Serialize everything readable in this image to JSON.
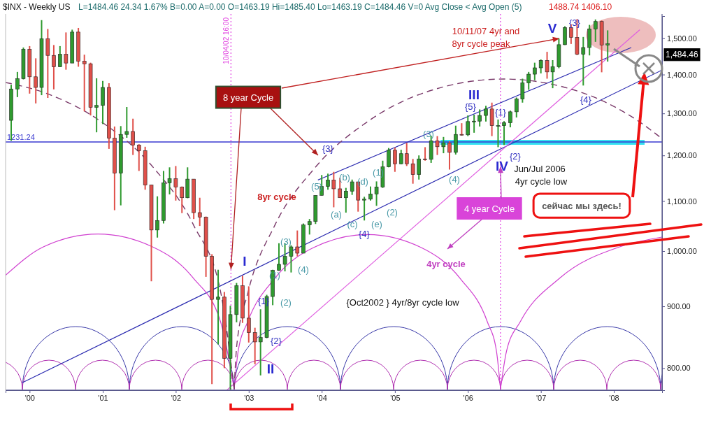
{
  "chart_data": {
    "type": "candlestick",
    "title": "$INX - Weekly US",
    "subtitle": "L=1484.46  24.34  1.67%  B=0.00  A=0.00  O=1463.19  Hi=1485.40  Lo=1463.19  C=1484.46  V=0  Avg Close < Avg Open (5)",
    "log": "y",
    "grid": false,
    "xlim": [
      "1999-09-03",
      "2008-08-29"
    ],
    "xticks": [
      {
        "value": "2000",
        "label": "'00"
      },
      {
        "value": "2001",
        "label": "'01"
      },
      {
        "value": "2002",
        "label": "'02"
      },
      {
        "value": "2003",
        "label": "'03"
      },
      {
        "value": "2004",
        "label": "'04"
      },
      {
        "value": "2005",
        "label": "'05"
      },
      {
        "value": "2006",
        "label": "'06"
      },
      {
        "value": "2007",
        "label": "'07"
      },
      {
        "value": "2008",
        "label": "'08"
      }
    ],
    "ylim": [
      767,
      1565
    ],
    "yticks": [
      {
        "value": 800,
        "label": "800.00"
      },
      {
        "value": 900,
        "label": "900.00"
      },
      {
        "value": 1000,
        "label": "1,000.00"
      },
      {
        "value": 1100,
        "label": "1,100.00"
      },
      {
        "value": 1200,
        "label": "1,200.00"
      },
      {
        "value": 1300,
        "label": "1,300.00"
      },
      {
        "value": 1400,
        "label": "1,400.00"
      },
      {
        "value": 1500,
        "label": "1,500.00"
      }
    ],
    "x": [
      "1999-10",
      "1999-11",
      "1999-12",
      "2000-01",
      "2000-02",
      "2000-03",
      "2000-04",
      "2000-05",
      "2000-06",
      "2000-07",
      "2000-08",
      "2000-09",
      "2000-10",
      "2000-11",
      "2000-12",
      "2001-01",
      "2001-02",
      "2001-03",
      "2001-04",
      "2001-05",
      "2001-06",
      "2001-07",
      "2001-08",
      "2001-09",
      "2001-10",
      "2001-11",
      "2001-12",
      "2002-01",
      "2002-02",
      "2002-03",
      "2002-04",
      "2002-05",
      "2002-06",
      "2002-07",
      "2002-08",
      "2002-09",
      "2002-10",
      "2002-11",
      "2002-12",
      "2003-01",
      "2003-02",
      "2003-03",
      "2003-04",
      "2003-05",
      "2003-06",
      "2003-07",
      "2003-08",
      "2003-09",
      "2003-10",
      "2003-11",
      "2003-12",
      "2004-01",
      "2004-02",
      "2004-03",
      "2004-04",
      "2004-05",
      "2004-06",
      "2004-07",
      "2004-08",
      "2004-09",
      "2004-10",
      "2004-11",
      "2004-12",
      "2005-01",
      "2005-02",
      "2005-03",
      "2005-04",
      "2005-05",
      "2005-06",
      "2005-07",
      "2005-08",
      "2005-09",
      "2005-10",
      "2005-11",
      "2005-12",
      "2006-01",
      "2006-02",
      "2006-03",
      "2006-04",
      "2006-05",
      "2006-06",
      "2006-07",
      "2006-08",
      "2006-09",
      "2006-10",
      "2006-11",
      "2006-12",
      "2007-01",
      "2007-02",
      "2007-03",
      "2007-04",
      "2007-05",
      "2007-06",
      "2007-07",
      "2007-08",
      "2007-09",
      "2007-10",
      "2007-11",
      "2007-12"
    ],
    "ohlc": [
      [
        1283,
        1373,
        1234,
        1362
      ],
      [
        1362,
        1407,
        1341,
        1389
      ],
      [
        1389,
        1474,
        1387,
        1469
      ],
      [
        1469,
        1478,
        1350,
        1394
      ],
      [
        1394,
        1444,
        1325,
        1366
      ],
      [
        1366,
        1553,
        1346,
        1499
      ],
      [
        1499,
        1527,
        1339,
        1452
      ],
      [
        1452,
        1481,
        1361,
        1421
      ],
      [
        1421,
        1478,
        1420,
        1455
      ],
      [
        1455,
        1517,
        1413,
        1431
      ],
      [
        1431,
        1525,
        1431,
        1518
      ],
      [
        1518,
        1530,
        1421,
        1436
      ],
      [
        1436,
        1454,
        1305,
        1429
      ],
      [
        1429,
        1432,
        1295,
        1315
      ],
      [
        1315,
        1390,
        1254,
        1320
      ],
      [
        1320,
        1383,
        1274,
        1366
      ],
      [
        1366,
        1377,
        1215,
        1240
      ],
      [
        1240,
        1268,
        1081,
        1160
      ],
      [
        1160,
        1269,
        1091,
        1249
      ],
      [
        1249,
        1316,
        1241,
        1256
      ],
      [
        1256,
        1287,
        1201,
        1224
      ],
      [
        1224,
        1226,
        1165,
        1211
      ],
      [
        1211,
        1220,
        1124,
        1134
      ],
      [
        1134,
        1135,
        944,
        1041
      ],
      [
        1041,
        1110,
        1026,
        1060
      ],
      [
        1060,
        1165,
        1054,
        1139
      ],
      [
        1139,
        1173,
        1114,
        1148
      ],
      [
        1148,
        1176,
        1101,
        1130
      ],
      [
        1130,
        1131,
        1075,
        1107
      ],
      [
        1107,
        1173,
        1106,
        1147
      ],
      [
        1147,
        1147,
        1063,
        1076
      ],
      [
        1076,
        1107,
        1049,
        1067
      ],
      [
        1067,
        1068,
        952,
        990
      ],
      [
        990,
        994,
        776,
        912
      ],
      [
        912,
        965,
        837,
        916
      ],
      [
        916,
        925,
        800,
        815
      ],
      [
        815,
        901,
        768,
        886
      ],
      [
        886,
        941,
        873,
        936
      ],
      [
        936,
        954,
        872,
        880
      ],
      [
        880,
        935,
        840,
        856
      ],
      [
        856,
        864,
        806,
        841
      ],
      [
        841,
        895,
        789,
        848
      ],
      [
        848,
        920,
        847,
        917
      ],
      [
        917,
        965,
        902,
        964
      ],
      [
        964,
        1015,
        963,
        975
      ],
      [
        975,
        1015,
        962,
        990
      ],
      [
        990,
        1011,
        960,
        1008
      ],
      [
        1008,
        1040,
        990,
        996
      ],
      [
        996,
        1054,
        996,
        1051
      ],
      [
        1051,
        1063,
        1032,
        1058
      ],
      [
        1058,
        1112,
        1053,
        1112
      ],
      [
        1112,
        1156,
        1112,
        1131
      ],
      [
        1131,
        1159,
        1124,
        1145
      ],
      [
        1145,
        1163,
        1087,
        1126
      ],
      [
        1126,
        1150,
        1107,
        1107
      ],
      [
        1107,
        1128,
        1076,
        1121
      ],
      [
        1121,
        1146,
        1113,
        1141
      ],
      [
        1141,
        1141,
        1078,
        1102
      ],
      [
        1102,
        1109,
        1060,
        1104
      ],
      [
        1104,
        1131,
        1101,
        1115
      ],
      [
        1115,
        1142,
        1090,
        1130
      ],
      [
        1130,
        1188,
        1128,
        1174
      ],
      [
        1174,
        1217,
        1173,
        1212
      ],
      [
        1212,
        1218,
        1163,
        1181
      ],
      [
        1181,
        1213,
        1180,
        1204
      ],
      [
        1204,
        1229,
        1176,
        1181
      ],
      [
        1181,
        1192,
        1137,
        1157
      ],
      [
        1157,
        1200,
        1146,
        1192
      ],
      [
        1192,
        1219,
        1188,
        1191
      ],
      [
        1191,
        1246,
        1183,
        1234
      ],
      [
        1234,
        1245,
        1201,
        1220
      ],
      [
        1220,
        1243,
        1205,
        1229
      ],
      [
        1229,
        1233,
        1168,
        1207
      ],
      [
        1207,
        1270,
        1202,
        1249
      ],
      [
        1249,
        1276,
        1246,
        1248
      ],
      [
        1248,
        1295,
        1245,
        1280
      ],
      [
        1280,
        1297,
        1253,
        1281
      ],
      [
        1281,
        1310,
        1268,
        1295
      ],
      [
        1295,
        1319,
        1280,
        1311
      ],
      [
        1311,
        1327,
        1245,
        1270
      ],
      [
        1270,
        1285,
        1219,
        1270
      ],
      [
        1270,
        1281,
        1224,
        1277
      ],
      [
        1277,
        1307,
        1266,
        1304
      ],
      [
        1304,
        1340,
        1290,
        1336
      ],
      [
        1336,
        1389,
        1327,
        1378
      ],
      [
        1378,
        1407,
        1360,
        1401
      ],
      [
        1401,
        1432,
        1385,
        1418
      ],
      [
        1418,
        1441,
        1403,
        1438
      ],
      [
        1438,
        1462,
        1389,
        1407
      ],
      [
        1407,
        1439,
        1364,
        1421
      ],
      [
        1421,
        1499,
        1417,
        1482
      ],
      [
        1482,
        1535,
        1481,
        1531
      ],
      [
        1531,
        1541,
        1484,
        1503
      ],
      [
        1503,
        1556,
        1453,
        1455
      ],
      [
        1455,
        1504,
        1371,
        1474
      ],
      [
        1474,
        1539,
        1452,
        1527
      ],
      [
        1527,
        1555,
        1490,
        1549
      ],
      [
        1549,
        1552,
        1406,
        1481
      ],
      [
        1481,
        1523,
        1435,
        1484.46
      ]
    ],
    "series": [
      {
        "type": "line",
        "color": "#2a2ab0",
        "x": [
          "1999-11-25",
          "2008-08-29"
        ],
        "values": [
          778,
          1412
        ]
      },
      {
        "type": "line",
        "color": "#2a2ab0",
        "x": [
          "2003-12-13",
          "2008-03-28"
        ],
        "values": [
          1145,
          1474
        ]
      },
      {
        "type": "line",
        "color": "#e060e0",
        "x": [
          "2002-09-13",
          "2008-05-10"
        ],
        "values": [
          767,
          1525
        ]
      },
      {
        "type": "line",
        "color": "#d040d0",
        "x": [
          "1999-09-03",
          "2000-03-10",
          "2000-12-08",
          "2001-09-07",
          "2002-03-29",
          "2002-08-13",
          "2002-10-20"
        ],
        "values": [
          955,
          1008,
          1033,
          1008,
          950,
          874,
          769
        ]
      },
      {
        "type": "line",
        "color": "#d040d0",
        "x": [
          "2002-10-20",
          "2002-11-09",
          "2002-12-27",
          "2003-05-08",
          "2003-11-23",
          "2004-08-17",
          "2005-05-11",
          "2005-11-26",
          "2006-04-08",
          "2006-05-24",
          "2006-06-13"
        ],
        "values": [
          769,
          826,
          874,
          948,
          1007,
          1032,
          1007,
          948,
          874,
          826,
          769
        ]
      },
      {
        "type": "line",
        "color": "#d040d0",
        "x": [
          "2006-06-13",
          "2006-07-13",
          "2006-09-20",
          "2007-04-06",
          "2008-01-30",
          "2008-08-29"
        ],
        "values": [
          769,
          826,
          874,
          950,
          1008,
          1027
        ]
      },
      {
        "type": "line",
        "color": "#7a3a6a",
        "line_style": "dashed",
        "x": [
          "1999-09-03",
          "2000-03-23",
          "2000-12-17",
          "2001-09-12",
          "2002-04-01",
          "2002-08-14",
          "2002-10-20"
        ],
        "values": [
          1379,
          1351,
          1282,
          1172,
          1050,
          924,
          769
        ]
      },
      {
        "type": "line",
        "color": "#7a3a6a",
        "line_style": "dashed",
        "x": [
          "2002-10-20",
          "2002-11-02",
          "2002-12-28",
          "2003-05-11",
          "2003-11-28",
          "2004-08-24",
          "2005-05-20",
          "2006-06-27",
          "2007-08-04",
          "2008-04-30",
          "2008-08-29"
        ],
        "values": [
          769,
          835,
          924,
          1050,
          1172,
          1282,
          1351,
          1388,
          1351,
          1282,
          1239
        ]
      }
    ],
    "ref_lines": [
      {
        "axis": "y",
        "value": 1231.24,
        "label": "1231.24",
        "color": "#3a3ad0",
        "line_style": "solid"
      },
      {
        "axis": "x",
        "value": "2002-10-04",
        "label": "10/04/02 16:00",
        "color": "#e040e0",
        "line_style": "dotted"
      },
      {
        "axis": "x",
        "value": "2006-06-13",
        "label": null,
        "color": "#e040e0",
        "line_style": "dotted"
      }
    ],
    "annotations": [
      "I",
      "II",
      "III",
      "IV",
      "V",
      "{1}",
      "{2}",
      "{3}",
      "{4}",
      "{5}",
      "{1}",
      "{2}",
      "{3}",
      "{4}",
      "(1)",
      "(2)",
      "(3)",
      "(4)",
      "(5)",
      "(a)",
      "(b)",
      "(c)",
      "(d)",
      "(e)",
      "(1)",
      "(2)",
      "(3)",
      "(4)",
      "8yr cycle",
      "4yr cycle",
      {
        "text": "8 year Cycle",
        "x": "2002-10-04",
        "y": 966
      },
      {
        "text": "4 year Cycle",
        "x": "2006-06-13",
        "y": 1175
      },
      "сейчас мы здесь!",
      "10/11/07   4yr and",
      "8yr  cycle  peak",
      "Jun/Jul 2006",
      "4yr cycle  low",
      "{Oct2002 }    4yr/8yr cycle low",
      "1,484.46",
      "1488.74   1406.10"
    ]
  }
}
